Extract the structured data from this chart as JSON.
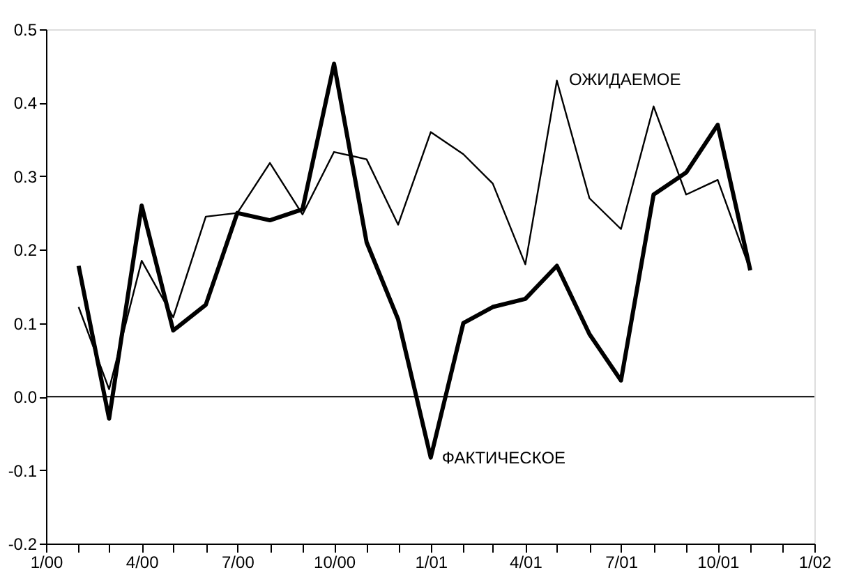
{
  "chart_data": {
    "type": "line",
    "x": [
      "2000-02",
      "2000-03",
      "2000-04",
      "2000-05",
      "2000-06",
      "2000-07",
      "2000-08",
      "2000-09",
      "2000-10",
      "2000-11",
      "2000-12",
      "2001-01",
      "2001-02",
      "2001-03",
      "2001-04",
      "2001-05",
      "2001-06",
      "2001-07",
      "2001-08",
      "2001-09",
      "2001-10",
      "2001-11"
    ],
    "series": [
      {
        "color": "#000000",
        "values": [
          0.178,
          -0.03,
          0.26,
          0.09,
          0.125,
          0.25,
          0.24,
          0.255,
          0.453,
          0.21,
          0.105,
          -0.083,
          0.1,
          0.122,
          0.133,
          0.178,
          0.085,
          0.022,
          0.275,
          0.305,
          0.37,
          0.172
        ]
      },
      {
        "color": "#000000",
        "values": [
          0.122,
          0.01,
          0.185,
          0.108,
          0.245,
          0.25,
          0.318,
          0.248,
          0.333,
          0.323,
          0.234,
          0.36,
          0.33,
          0.29,
          0.18,
          0.43,
          0.27,
          0.228,
          0.395,
          0.275,
          0.295,
          0.172
        ]
      }
    ],
    "annotations": [
      "ОЖИДАЕМОЕ",
      {
        "text": "ФАКТИЧЕСКОЕ",
        "x": "2001-01",
        "y": -0.083
      }
    ],
    "ylim": [
      -0.2,
      0.5
    ],
    "yticks": [
      {
        "value": -0.2,
        "label": "-0.2"
      },
      {
        "value": -0.1,
        "label": "-0.1"
      },
      {
        "value": 0,
        "label": "0.0"
      },
      {
        "value": 0.1,
        "label": "0.1"
      },
      {
        "value": 0.2,
        "label": "0.2"
      },
      {
        "value": 0.3,
        "label": "0.3"
      },
      {
        "value": 0.4,
        "label": "0.4"
      },
      {
        "value": 0.5,
        "label": "0.5"
      }
    ],
    "xlim": [
      "2000-01",
      "2002-01"
    ],
    "xticks": [
      {
        "value": "2000-01",
        "label": "1/00"
      },
      {
        "value": "2000-02",
        "label": null
      },
      {
        "value": "2000-03",
        "label": null
      },
      {
        "value": "2000-04",
        "label": "4/00"
      },
      {
        "value": "2000-05",
        "label": null
      },
      {
        "value": "2000-06",
        "label": null
      },
      {
        "value": "2000-07",
        "label": "7/00"
      },
      {
        "value": "2000-08",
        "label": null
      },
      {
        "value": "2000-09",
        "label": null
      },
      {
        "value": "2000-10",
        "label": "10/00"
      },
      {
        "value": "2000-11",
        "label": null
      },
      {
        "value": "2000-12",
        "label": null
      },
      {
        "value": "2001-01",
        "label": "1/01"
      },
      {
        "value": "2001-02",
        "label": null
      },
      {
        "value": "2001-03",
        "label": null
      },
      {
        "value": "2001-04",
        "label": "4/01"
      },
      {
        "value": "2001-05",
        "label": null
      },
      {
        "value": "2001-06",
        "label": null
      },
      {
        "value": "2001-07",
        "label": "7/01"
      },
      {
        "value": "2001-08",
        "label": null
      },
      {
        "value": "2001-09",
        "label": null
      },
      {
        "value": "2001-10",
        "label": "10/01"
      },
      {
        "value": "2001-11",
        "label": null
      },
      {
        "value": "2001-12",
        "label": null
      },
      {
        "value": "2002-01",
        "label": "1/02"
      }
    ],
    "ref_lines": [
      {
        "axis": "y",
        "value": 0,
        "color": "#000000",
        "line_style": "solid"
      }
    ],
    "grid": false,
    "marker": "none",
    "line_style": "solid"
  }
}
